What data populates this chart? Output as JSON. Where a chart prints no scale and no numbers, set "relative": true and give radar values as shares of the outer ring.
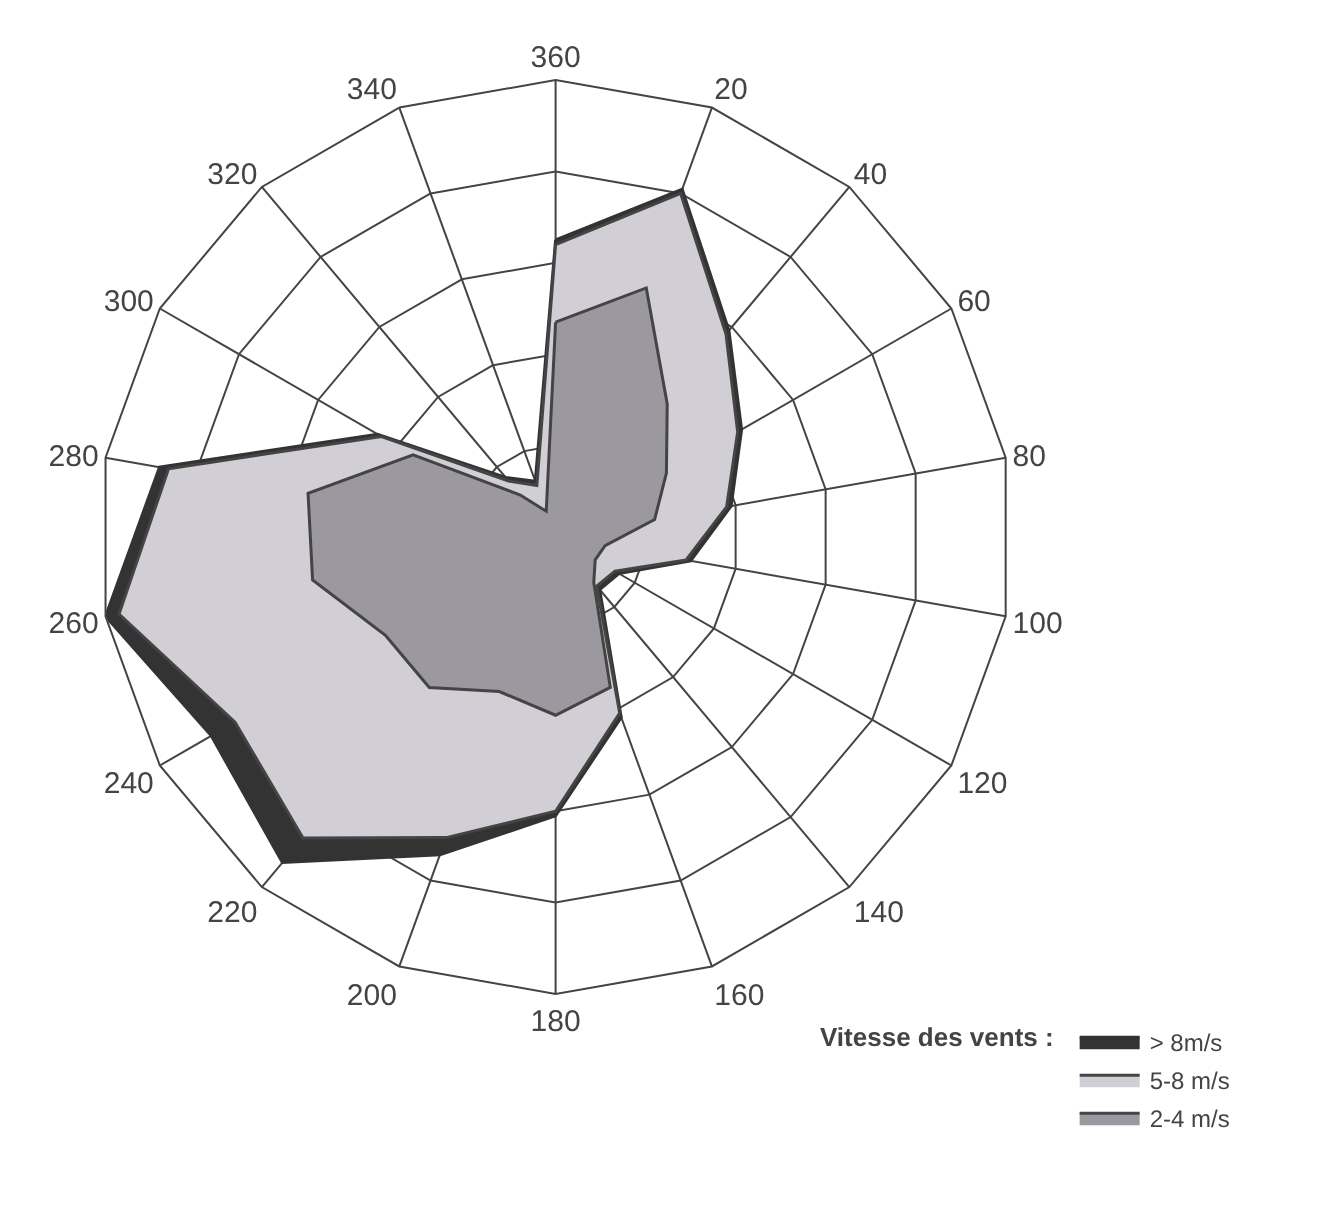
{
  "chart_data": {
    "type": "radar",
    "relative": true,
    "legend": "bottom right",
    "legend_title": "Vitesse des vents :",
    "grid": true,
    "categories": [
      "360",
      "20",
      "40",
      "60",
      "80",
      "100",
      "120",
      "140",
      "160",
      "180",
      "200",
      "220",
      "240",
      "260",
      "280",
      "300",
      "320",
      "340"
    ],
    "series": [
      {
        "name": "> 8m/s",
        "color": "#333333",
        "values": [
          0.65,
          0.81,
          0.59,
          0.47,
          0.39,
          0.3,
          0.16,
          0.15,
          0.42,
          0.61,
          0.74,
          0.93,
          0.87,
          1.0,
          0.88,
          0.45,
          0.17,
          0.13
        ]
      },
      {
        "name": "5-8 m/s",
        "color": "#d2ced6",
        "values": [
          0.64,
          0.8,
          0.58,
          0.46,
          0.38,
          0.29,
          0.15,
          0.14,
          0.41,
          0.6,
          0.7,
          0.86,
          0.81,
          0.97,
          0.86,
          0.44,
          0.16,
          0.12
        ]
      },
      {
        "name": "2-4 m/s",
        "color": "#9c98a0",
        "values": [
          0.47,
          0.58,
          0.38,
          0.28,
          0.22,
          0.11,
          0.1,
          0.13,
          0.35,
          0.39,
          0.36,
          0.43,
          0.43,
          0.54,
          0.55,
          0.36,
          0.12,
          0.06
        ]
      }
    ]
  }
}
